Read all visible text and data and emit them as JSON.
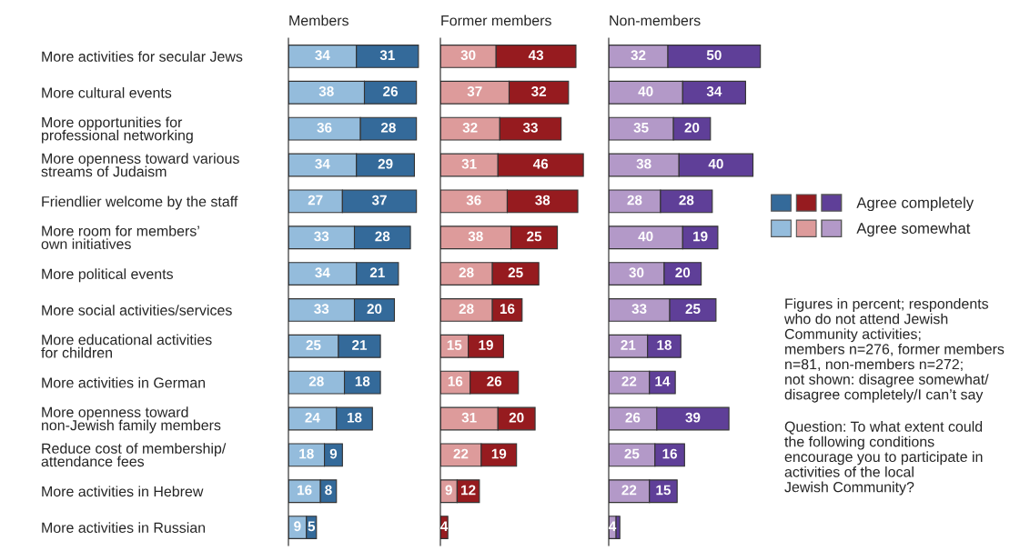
{
  "chart_data": [
    {
      "type": "bar",
      "orientation": "horizontal",
      "stacked": true,
      "title": "Members",
      "tick_labels": "y",
      "categories": [
        "More activities for secular Jews",
        "More cultural events",
        "More opportunities for\nprofessional networking",
        "More openness toward various\nstreams of Judaism",
        "Friendlier welcome by the staff",
        "More room for members’\nown initiatives",
        "More political events",
        "More social activities/services",
        "More educational activities\nfor children",
        "More activities in German",
        "More openness toward\nnon-Jewish family members",
        "Reduce cost of membership/\nattendance fees",
        "More activities in Hebrew",
        "More activities in Russian"
      ],
      "data_labels": true,
      "series": [
        {
          "color": "#94bcdc",
          "values": [
            34,
            38,
            36,
            34,
            27,
            33,
            34,
            33,
            25,
            28,
            24,
            18,
            16,
            9
          ]
        },
        {
          "color": "#346a9a",
          "values": [
            31,
            26,
            28,
            29,
            37,
            28,
            21,
            20,
            21,
            18,
            18,
            9,
            8,
            5
          ]
        }
      ]
    },
    {
      "type": "bar",
      "orientation": "horizontal",
      "stacked": true,
      "title": "Former members",
      "tick_labels": false,
      "categories": [
        null,
        null,
        null,
        null,
        null,
        null,
        null,
        null,
        null,
        null,
        null,
        null,
        null,
        null
      ],
      "data_labels": true,
      "series": [
        {
          "color": "#dd9b9b",
          "values": [
            30,
            37,
            32,
            31,
            36,
            38,
            28,
            28,
            15,
            16,
            31,
            22,
            9,
            null
          ]
        },
        {
          "color": "#961b1f",
          "values": [
            43,
            32,
            33,
            46,
            38,
            25,
            25,
            16,
            19,
            26,
            20,
            19,
            12,
            4
          ]
        }
      ]
    },
    {
      "type": "bar",
      "orientation": "horizontal",
      "stacked": true,
      "title": "Non-members",
      "tick_labels": false,
      "legend": "right",
      "categories": [
        null,
        null,
        null,
        null,
        null,
        null,
        null,
        null,
        null,
        null,
        null,
        null,
        null,
        null
      ],
      "series": [
        {
          "name": "Agree somewhat",
          "color": "#b399c8",
          "values": [
            32,
            40,
            35,
            38,
            28,
            40,
            30,
            33,
            21,
            22,
            26,
            25,
            22,
            4
          ],
          "value_labels": [
            "32",
            "40",
            "35",
            "38",
            "28",
            "40",
            "30",
            "33",
            "21",
            "22",
            "26",
            "25",
            "22",
            "4"
          ]
        },
        {
          "name": "Agree completely",
          "color": "#5f3f98",
          "values": [
            50,
            34,
            20,
            40,
            28,
            19,
            20,
            25,
            18,
            14,
            39,
            16,
            15,
            2
          ],
          "value_labels": [
            "50",
            "34",
            "20",
            "40",
            "28",
            "19",
            "20",
            "25",
            "18",
            "14",
            "39",
            "16",
            "15",
            null
          ]
        }
      ],
      "annotations": [
        "Figures in percent; respondents\nwho do not attend Jewish\nCommunity activities;\nmembers n=276, former members\nn=81, non-members n=272;\nnot shown: disagree somewhat/\ndisagree completely/I can’t say",
        "Question: To what extent could\nthe following conditions\nencourage you to participate in\nactivities of the local\nJewish Community?"
      ]
    }
  ]
}
